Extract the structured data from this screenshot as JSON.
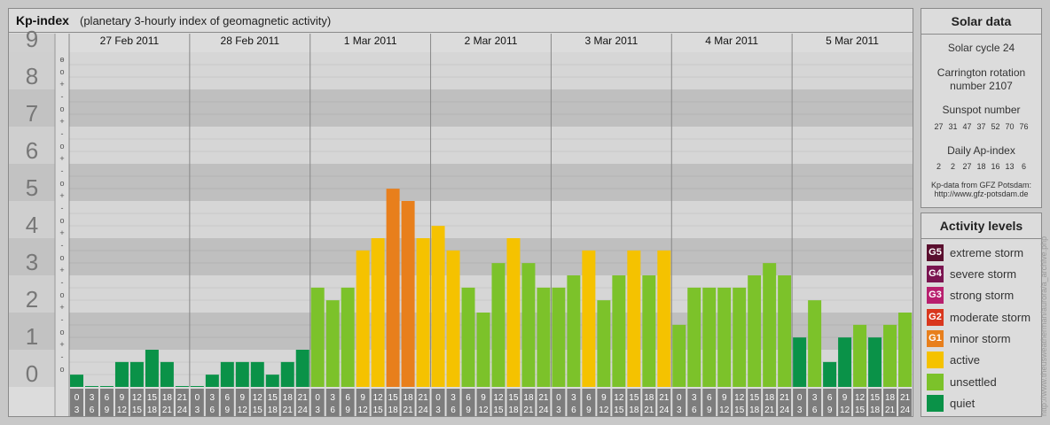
{
  "title": "Kp-index",
  "subtitle": "(planetary 3-hourly index of geomagnetic activity)",
  "solar": {
    "heading": "Solar data",
    "cycle": "Solar cycle 24",
    "carrington_1": "Carrington rotation",
    "carrington_2": "number 2107",
    "sunspot_label": "Sunspot number",
    "sunspot_values": [
      "27",
      "31",
      "47",
      "37",
      "52",
      "70",
      "76"
    ],
    "ap_label": "Daily Ap-index",
    "ap_values": [
      "2",
      "2",
      "27",
      "18",
      "16",
      "13",
      "6"
    ],
    "source_1": "Kp-data from GFZ Potsdam:",
    "source_2": "http://www.gfz-potsdam.de"
  },
  "levels": {
    "heading": "Activity levels",
    "items": [
      {
        "badge": "G5",
        "label": "extreme storm",
        "color": "#5a0f2e"
      },
      {
        "badge": "G4",
        "label": "severe storm",
        "color": "#7a1450"
      },
      {
        "badge": "G3",
        "label": "strong storm",
        "color": "#b81f6e"
      },
      {
        "badge": "G2",
        "label": "moderate storm",
        "color": "#d9371e"
      },
      {
        "badge": "G1",
        "label": "minor storm",
        "color": "#e87f1c"
      },
      {
        "badge": "",
        "label": "active",
        "color": "#f5c200"
      },
      {
        "badge": "",
        "label": "unsettled",
        "color": "#7cc22a"
      },
      {
        "badge": "",
        "label": "quiet",
        "color": "#0a9248"
      }
    ]
  },
  "credit": "http://www.theusweatherman/aurora/a_archive.php",
  "chart_data": {
    "type": "bar",
    "title": "Kp-index",
    "ylim": [
      0,
      9
    ],
    "y_ticks": [
      "0",
      "1",
      "2",
      "3",
      "4",
      "5",
      "6",
      "7",
      "8",
      "9"
    ],
    "minor_ticks": [
      "+",
      "o",
      "-"
    ],
    "days": [
      "27 Feb 2011",
      "28 Feb 2011",
      "1 Mar 2011",
      "2 Mar 2011",
      "3 Mar 2011",
      "4 Mar 2011",
      "5 Mar 2011"
    ],
    "hour_start": [
      "0",
      "3",
      "6",
      "9",
      "12",
      "15",
      "18",
      "21"
    ],
    "hour_end": [
      "3",
      "6",
      "9",
      "12",
      "15",
      "18",
      "21",
      "24"
    ],
    "values": [
      0.33,
      0,
      0,
      0.67,
      0.67,
      1,
      0.67,
      0,
      0,
      0.33,
      0.67,
      0.67,
      0.67,
      0.33,
      0.67,
      1,
      2.67,
      2.33,
      2.67,
      3.67,
      4,
      5.33,
      5,
      4,
      4.33,
      3.67,
      2.67,
      2,
      3.33,
      4,
      3.33,
      2.67,
      2.67,
      3,
      3.67,
      2.33,
      3,
      3.67,
      3,
      3.67,
      1.67,
      2.67,
      2.67,
      2.67,
      2.67,
      3,
      3.33,
      3,
      1.33,
      2.33,
      0.67,
      1.33,
      1.67,
      1.33,
      1.67,
      2
    ],
    "colors": {
      "quiet": "#0a9248",
      "unsettled": "#7cc22a",
      "active": "#f5c200",
      "minor_storm": "#e87f1c"
    }
  }
}
